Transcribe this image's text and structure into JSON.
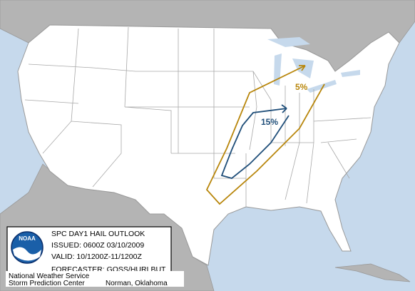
{
  "outlook": {
    "labels": [
      "5%",
      "15%"
    ]
  },
  "legend": {
    "title": "SPC DAY1 HAIL OUTLOOK",
    "issued": "ISSUED: 0600Z 03/10/2009",
    "valid": "VALID: 10/1200Z-11/1200Z",
    "forecaster": "FORECASTER: GOSS/HURLBUT",
    "logo": "NOAA"
  },
  "footer": {
    "agency": "National Weather Service",
    "center": "Storm Prediction Center",
    "location": "Norman, Oklahoma"
  }
}
